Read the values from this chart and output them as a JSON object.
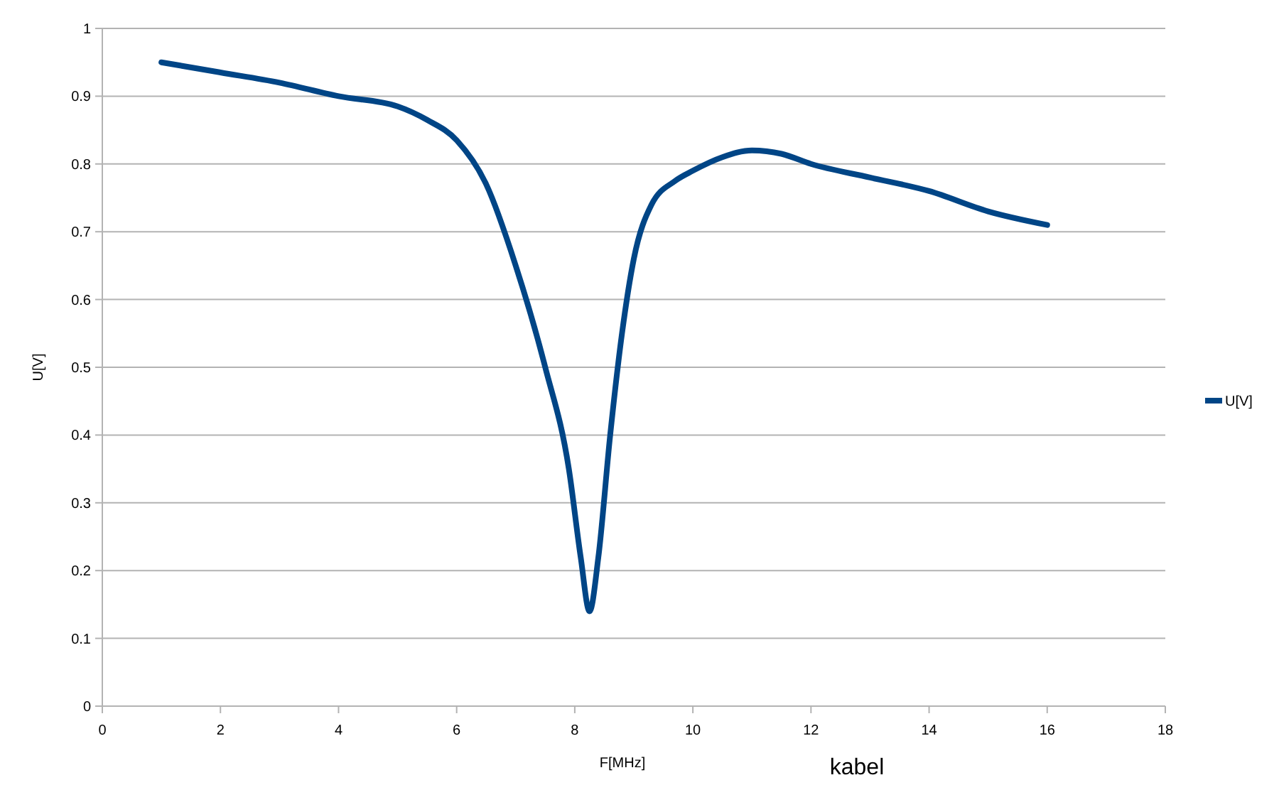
{
  "chart_data": {
    "type": "line",
    "xlabel": "F[MHz]",
    "ylabel": "U[V]",
    "annotations": [
      "kabel"
    ],
    "xlim": [
      0,
      18
    ],
    "xticks": [
      0,
      2,
      4,
      6,
      8,
      10,
      12,
      14,
      16,
      18
    ],
    "ylim": [
      0,
      1
    ],
    "yticks": [
      0,
      0.1,
      0.2,
      0.3,
      0.4,
      0.5,
      0.6,
      0.7,
      0.8,
      0.9,
      1
    ],
    "grid": "y",
    "legend": "right",
    "marker": "none",
    "line_style": "solid",
    "series": [
      {
        "name": "U[V]",
        "color": "#004586",
        "x": [
          1,
          2,
          3,
          4,
          5,
          5.5,
          6,
          6.5,
          7,
          7.5,
          7.9,
          8.1,
          8.25,
          8.4,
          8.6,
          8.8,
          9,
          9.3,
          9.7,
          10,
          10.5,
          11,
          11.5,
          12,
          13,
          14,
          15,
          16
        ],
        "values": [
          0.95,
          0.935,
          0.92,
          0.9,
          0.885,
          0.865,
          0.835,
          0.77,
          0.65,
          0.5,
          0.35,
          0.22,
          0.14,
          0.22,
          0.4,
          0.55,
          0.66,
          0.74,
          0.775,
          0.79,
          0.81,
          0.82,
          0.815,
          0.8,
          0.78,
          0.76,
          0.73,
          0.71
        ]
      }
    ]
  }
}
